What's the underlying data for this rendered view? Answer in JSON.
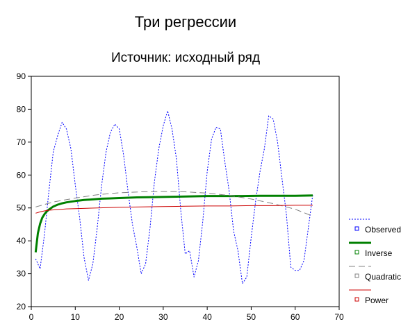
{
  "chart_data": {
    "type": "line",
    "title": "Три регрессии",
    "subtitle": "Источник: исходный ряд",
    "xlabel": "",
    "ylabel": "",
    "xlim": [
      0,
      70
    ],
    "ylim": [
      20,
      90
    ],
    "x_ticks": [
      0,
      10,
      20,
      30,
      40,
      50,
      60,
      70
    ],
    "y_ticks": [
      20,
      30,
      40,
      50,
      60,
      70,
      80,
      90
    ],
    "grid": false,
    "legend_position": "right",
    "series": [
      {
        "name": "Observed",
        "color": "#0000ff",
        "style": "dotted",
        "x": [
          1,
          2,
          3,
          4,
          5,
          6,
          7,
          8,
          9,
          10,
          11,
          12,
          13,
          14,
          15,
          16,
          17,
          18,
          19,
          20,
          21,
          22,
          23,
          24,
          25,
          26,
          27,
          28,
          29,
          30,
          31,
          32,
          33,
          34,
          35,
          36,
          37,
          38,
          39,
          40,
          41,
          42,
          43,
          44,
          45,
          46,
          47,
          48,
          49,
          50,
          51,
          52,
          53,
          54,
          55,
          56,
          57,
          58,
          59,
          60,
          61,
          62,
          63,
          64
        ],
        "y": [
          34.5,
          31.5,
          42,
          55,
          67,
          72,
          76,
          74,
          68,
          57,
          47,
          35,
          28,
          33,
          44,
          57,
          67,
          73,
          75.5,
          74,
          66,
          55,
          45,
          38,
          30,
          33,
          44,
          58,
          68,
          75,
          79.5,
          74,
          65,
          49,
          36,
          37,
          29,
          34,
          46,
          61,
          71,
          74.5,
          74,
          64,
          55,
          43,
          37,
          27,
          29,
          41,
          52,
          61,
          68,
          78,
          77,
          70,
          59,
          48,
          32,
          31,
          31,
          34,
          44,
          54
        ]
      },
      {
        "name": "Inverse",
        "color": "#008000",
        "style": "solid-thick",
        "x": [
          1,
          1.5,
          2,
          2.5,
          3,
          3.5,
          4,
          5,
          6,
          7,
          8,
          9,
          10,
          12,
          14,
          16,
          18,
          20,
          24,
          28,
          32,
          36,
          40,
          44,
          48,
          52,
          56,
          60,
          64
        ],
        "y": [
          36.5,
          42.3,
          45.2,
          47,
          48.1,
          48.9,
          49.5,
          50.4,
          51,
          51.4,
          51.7,
          51.9,
          52.1,
          52.4,
          52.6,
          52.8,
          52.9,
          53,
          53.2,
          53.3,
          53.4,
          53.5,
          53.6,
          53.6,
          53.6,
          53.7,
          53.7,
          53.7,
          53.8
        ]
      },
      {
        "name": "Quadratic",
        "color": "#808080",
        "style": "dashed",
        "x": [
          1,
          5,
          10,
          15,
          20,
          25,
          30,
          35,
          40,
          45,
          50,
          55,
          60,
          64
        ],
        "y": [
          50.3,
          51.8,
          53,
          54,
          54.6,
          54.9,
          55,
          54.9,
          54.5,
          53.8,
          52.7,
          51.3,
          49.6,
          47.5
        ]
      },
      {
        "name": "Power",
        "color": "#cc0000",
        "style": "solid",
        "x": [
          1,
          2,
          3,
          4,
          6,
          8,
          10,
          15,
          20,
          25,
          30,
          35,
          40,
          45,
          50,
          55,
          60,
          64
        ],
        "y": [
          48.4,
          48.8,
          49.1,
          49.3,
          49.5,
          49.7,
          49.8,
          50,
          50.2,
          50.3,
          50.4,
          50.5,
          50.6,
          50.6,
          50.7,
          50.7,
          50.8,
          50.8
        ]
      }
    ]
  }
}
